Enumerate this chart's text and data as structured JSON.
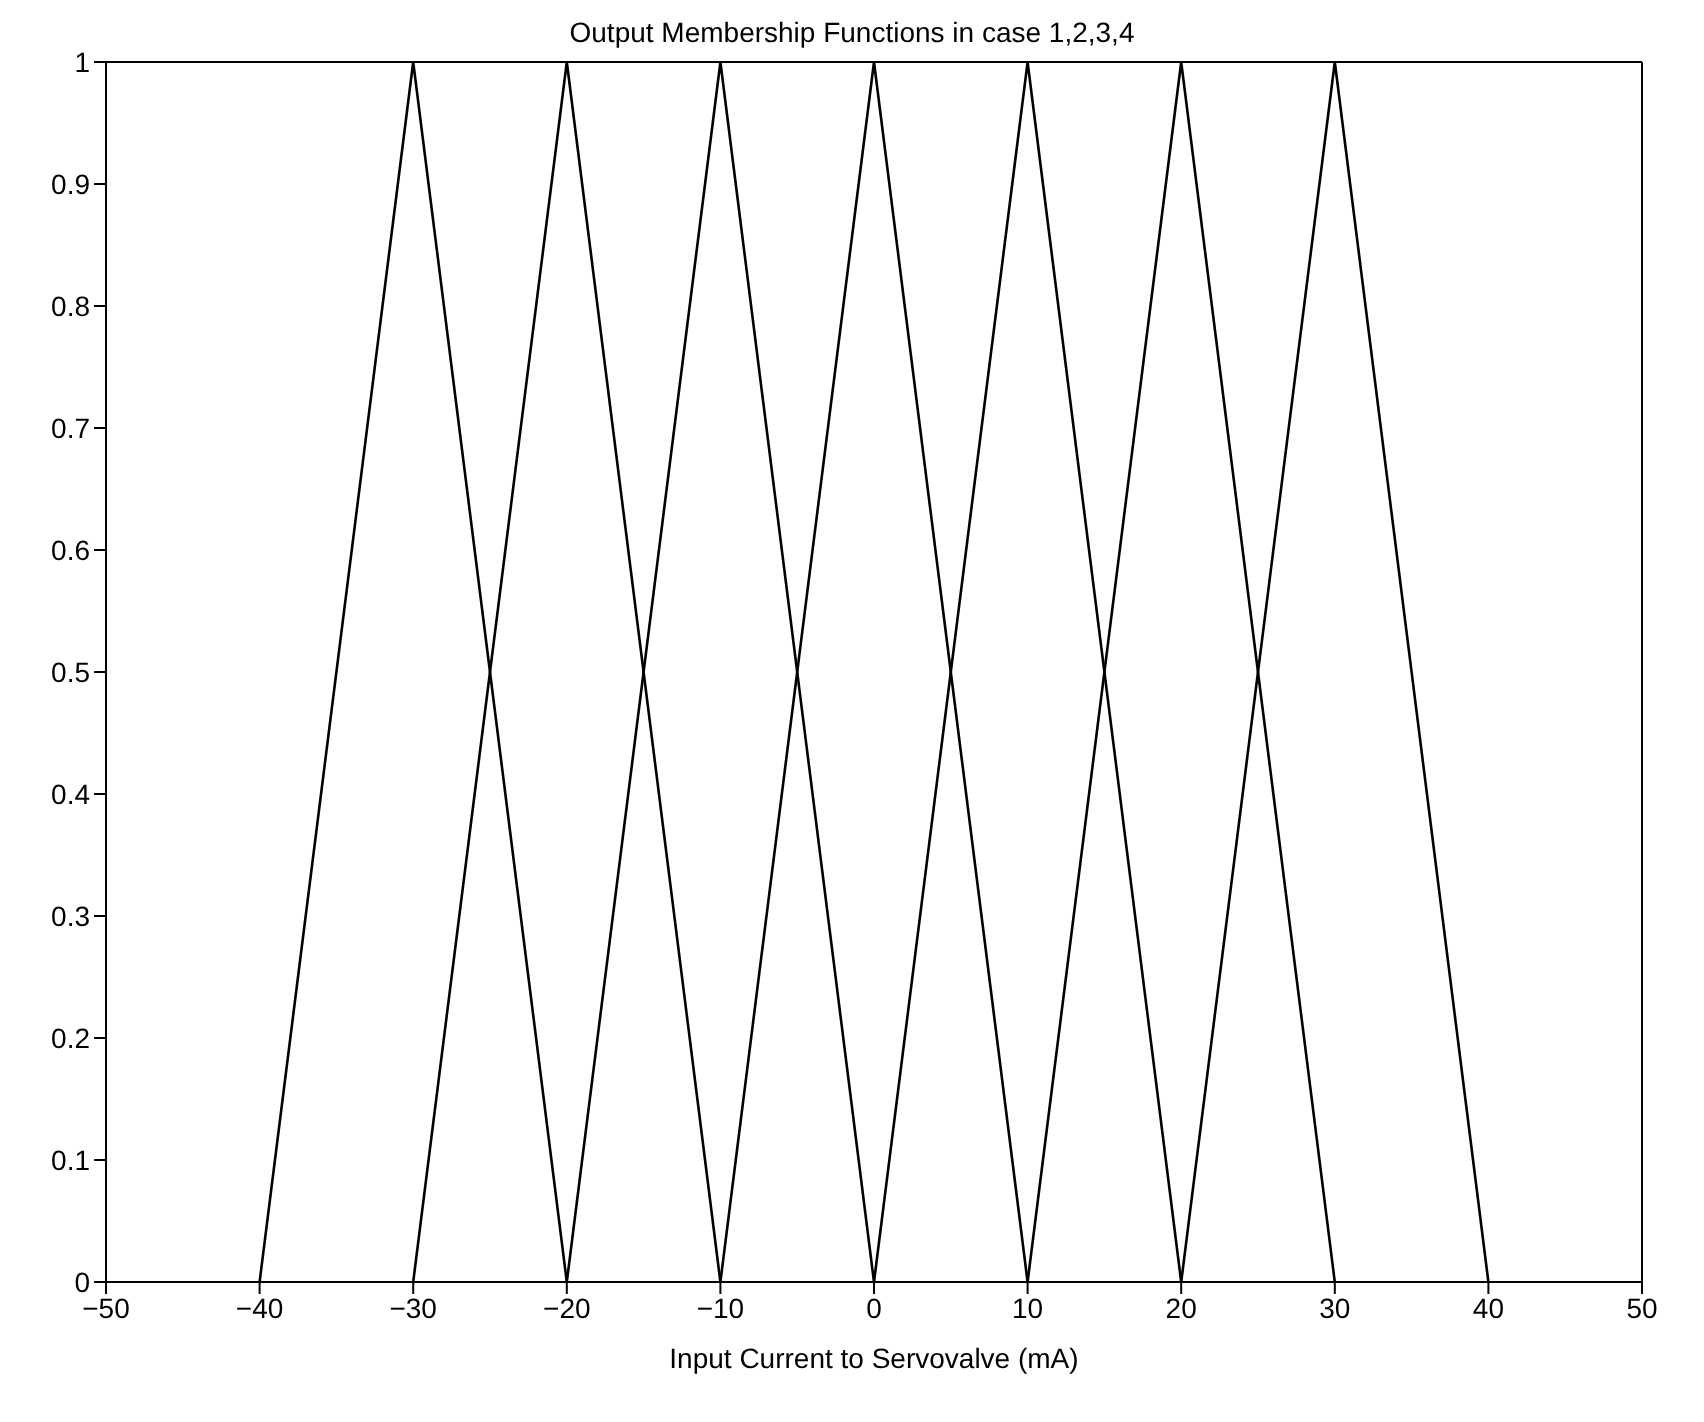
{
  "chart_data": {
    "type": "line",
    "title": "Output Membership Functions in case 1,2,3,4",
    "xlabel": "Input Current to Servovalve (mA)",
    "series": [
      {
        "color": "#000000",
        "x": [
          -40,
          -30,
          -20
        ],
        "values": [
          0,
          1,
          0
        ]
      },
      {
        "color": "#000000",
        "x": [
          -30,
          -20,
          -10
        ],
        "values": [
          0,
          1,
          0
        ]
      },
      {
        "color": "#000000",
        "x": [
          -20,
          -10,
          0
        ],
        "values": [
          0,
          1,
          0
        ]
      },
      {
        "color": "#000000",
        "x": [
          -10,
          0,
          10
        ],
        "values": [
          0,
          1,
          0
        ]
      },
      {
        "color": "#000000",
        "x": [
          0,
          10,
          20
        ],
        "values": [
          0,
          1,
          0
        ]
      },
      {
        "color": "#000000",
        "x": [
          10,
          20,
          30
        ],
        "values": [
          0,
          1,
          0
        ]
      },
      {
        "color": "#000000",
        "x": [
          20,
          30,
          40
        ],
        "values": [
          0,
          1,
          0
        ]
      }
    ],
    "xlim": [
      -50,
      50
    ],
    "xticks": [
      -50,
      -40,
      -30,
      -20,
      -10,
      0,
      10,
      20,
      30,
      40,
      50
    ],
    "ylim": [
      0,
      1
    ],
    "yticks": [
      0,
      0.1,
      0.2,
      0.3,
      0.4,
      0.5,
      0.6,
      0.7,
      0.8,
      0.9,
      1
    ],
    "marker": "none",
    "line_style": "solid"
  }
}
